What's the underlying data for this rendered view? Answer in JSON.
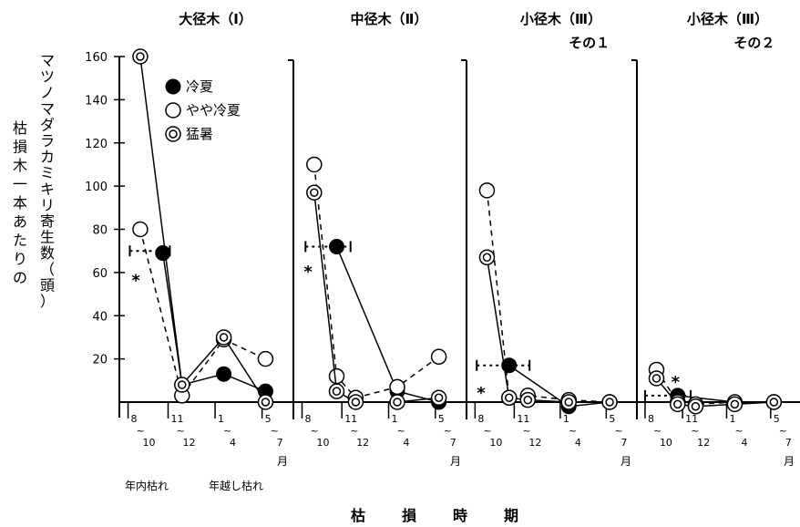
{
  "chart_data": {
    "type": "line",
    "ylabel_left": "枯損木一本あたりの",
    "ylabel_right": "マツノマダラカミキリ寄生数（頭）",
    "xlabel": "枯 損 時 期",
    "ylim": [
      0,
      160
    ],
    "yticks": [
      "160",
      "140",
      "120",
      "100",
      "80",
      "60",
      "40",
      "20"
    ],
    "month_label": "月",
    "categories_note": [
      "年内枯れ",
      "年越し枯れ"
    ],
    "legend": [
      {
        "label": "冷夏",
        "marker": "filled"
      },
      {
        "label": "やや冷夏",
        "marker": "open"
      },
      {
        "label": "猛暑",
        "marker": "double"
      }
    ],
    "panels": [
      {
        "title": "大径木（Ⅰ）",
        "title2": "",
        "xticks": [
          {
            "top": "8",
            "bottom": "10"
          },
          {
            "top": "11",
            "bottom": "12"
          },
          {
            "top": "1",
            "bottom": "4"
          },
          {
            "top": "5",
            "bottom": "7"
          }
        ],
        "series": [
          {
            "marker": "filled",
            "dash": false,
            "values": [
              null,
              69,
              8,
              13,
              5
            ]
          },
          {
            "marker": "open",
            "dash": true,
            "values": [
              80,
              null,
              3,
              29,
              20
            ]
          },
          {
            "marker": "double",
            "dash": false,
            "values": [
              160,
              null,
              8,
              30,
              0
            ]
          }
        ],
        "hbar": {
          "x1": 0.1,
          "x2": 1.2,
          "y": 70
        },
        "star": {
          "x": 0.2,
          "y": 58
        }
      },
      {
        "title": "中径木（Ⅱ）",
        "title2": "",
        "xticks": [
          {
            "top": "8",
            "bottom": "10"
          },
          {
            "top": "11",
            "bottom": "12"
          },
          {
            "top": "1",
            "bottom": "4"
          },
          {
            "top": "5",
            "bottom": "7"
          }
        ],
        "series": [
          {
            "marker": "filled",
            "dash": false,
            "values": [
              null,
              72,
              null,
              5,
              0
            ]
          },
          {
            "marker": "open",
            "dash": true,
            "values": [
              110,
              12,
              2,
              7,
              21
            ]
          },
          {
            "marker": "double",
            "dash": false,
            "values": [
              97,
              5,
              0,
              0,
              2
            ]
          }
        ],
        "hbar": {
          "x1": 0.2,
          "x2": 1.4,
          "y": 72
        },
        "star": {
          "x": 0.1,
          "y": 62
        }
      },
      {
        "title": "小径木（Ⅲ）",
        "title2": "その１",
        "xticks": [
          {
            "top": "8",
            "bottom": "10"
          },
          {
            "top": "11",
            "bottom": "12"
          },
          {
            "top": "1",
            "bottom": "4"
          },
          {
            "top": "5",
            "bottom": "7"
          }
        ],
        "series": [
          {
            "marker": "filled",
            "dash": false,
            "values": [
              null,
              17,
              null,
              -2,
              0
            ]
          },
          {
            "marker": "open",
            "dash": true,
            "values": [
              98,
              2,
              3,
              1,
              0
            ]
          },
          {
            "marker": "double",
            "dash": false,
            "values": [
              67,
              2,
              1,
              0,
              0
            ]
          }
        ],
        "hbar": {
          "x1": 0.1,
          "x2": 1.6,
          "y": 17
        },
        "star": {
          "x": 0.1,
          "y": 6
        }
      },
      {
        "title": "小径木（Ⅲ）",
        "title2": "その２",
        "xticks": [
          {
            "top": "8",
            "bottom": "10"
          },
          {
            "top": "11",
            "bottom": "12"
          },
          {
            "top": "1",
            "bottom": "4"
          },
          {
            "top": "5",
            "bottom": "7"
          }
        ],
        "series": [
          {
            "marker": "filled",
            "dash": false,
            "values": [
              null,
              3,
              null,
              0,
              0
            ]
          },
          {
            "marker": "open",
            "dash": true,
            "values": [
              15,
              0,
              -1,
              0,
              0
            ]
          },
          {
            "marker": "double",
            "dash": false,
            "values": [
              11,
              -1,
              -2,
              -1,
              0
            ]
          }
        ],
        "hbar": {
          "x1": 0.0,
          "x2": 1.4,
          "y": 3
        },
        "star": {
          "x": 1.6,
          "y": 11
        }
      }
    ]
  }
}
